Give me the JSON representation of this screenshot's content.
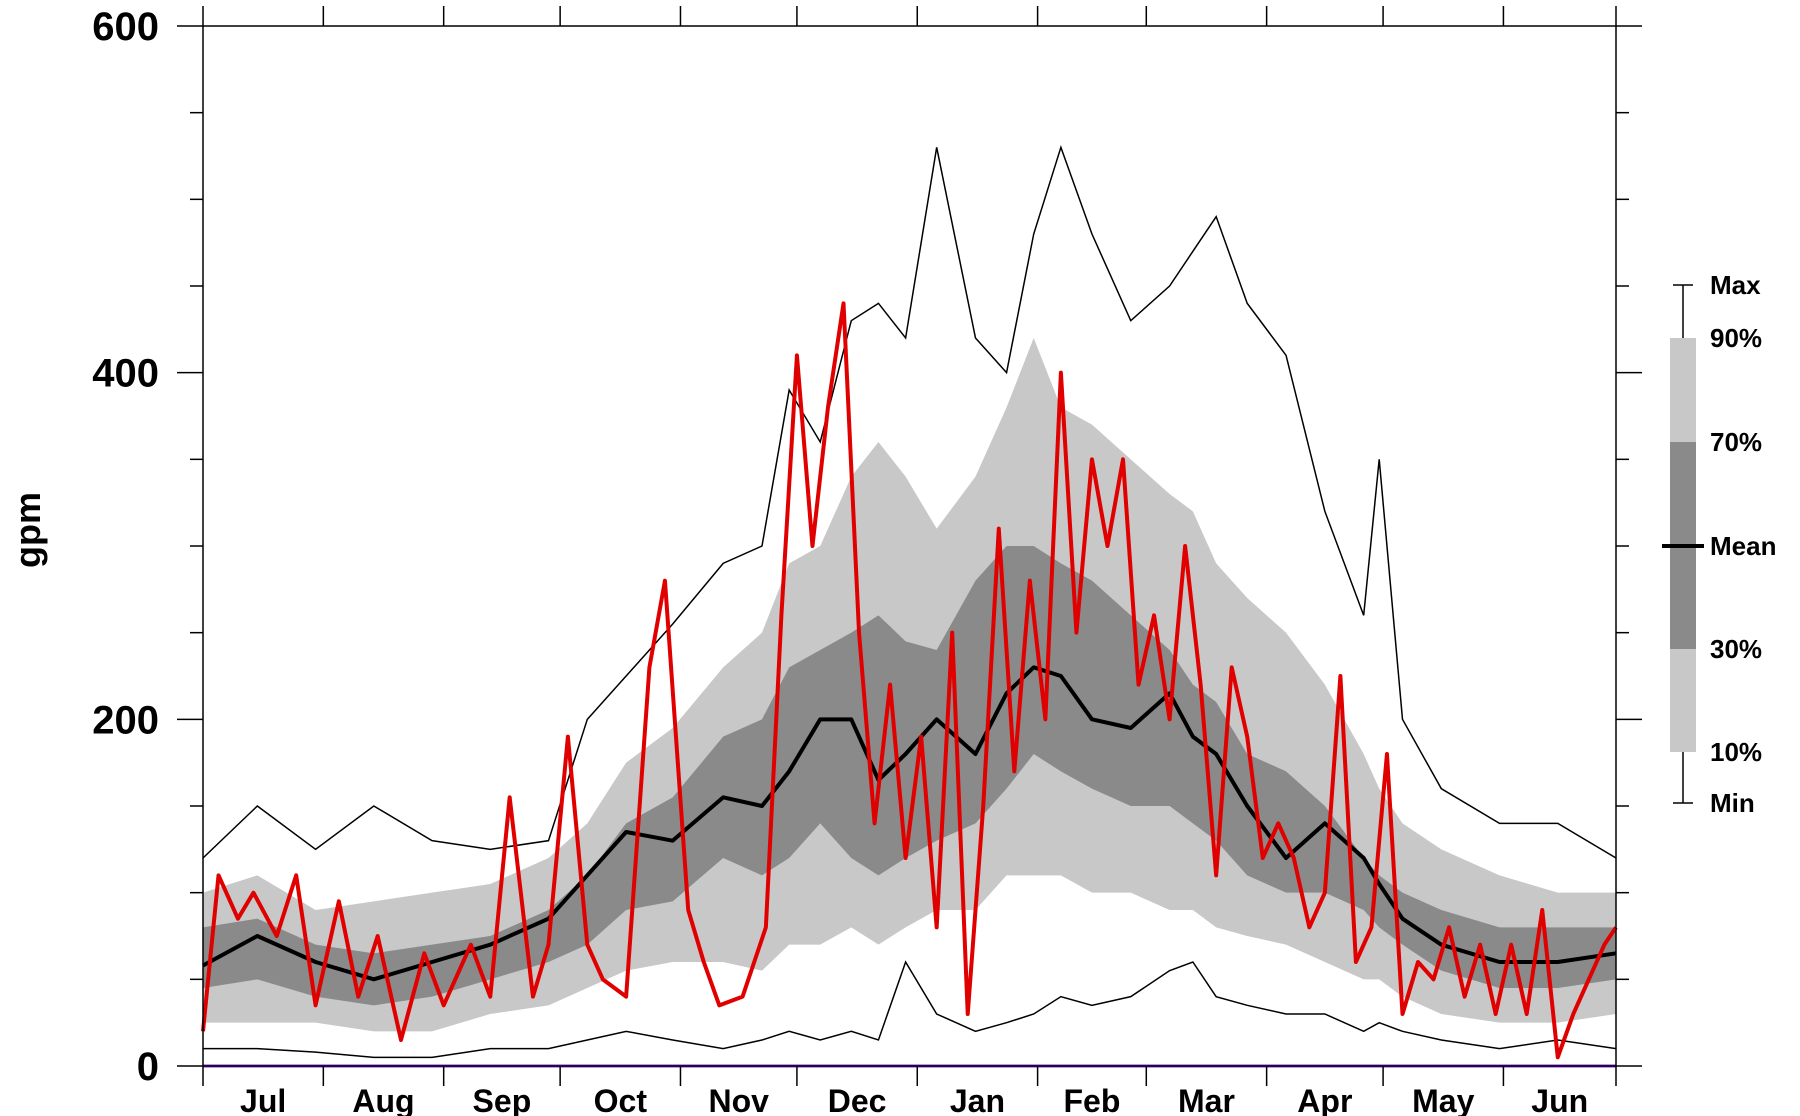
{
  "chart_data": {
    "type": "area",
    "title": "",
    "xlabel": "",
    "ylabel": "gpm",
    "ylim": [
      0,
      600
    ],
    "yticks": [
      "0",
      "200",
      "400",
      "600"
    ],
    "grid": false,
    "legend_position": "right",
    "months": [
      "Jul",
      "Aug",
      "Sep",
      "Oct",
      "Nov",
      "Dec",
      "Jan",
      "Feb",
      "Mar",
      "Apr",
      "May",
      "Jun"
    ],
    "days_per_month": [
      31,
      31,
      30,
      31,
      30,
      31,
      31,
      28,
      31,
      30,
      31,
      30
    ],
    "legend": [
      {
        "label": "Max",
        "kind": "thin-line",
        "color": "#000000"
      },
      {
        "label": "90%",
        "kind": "band-top",
        "color": "#c8c8c8"
      },
      {
        "label": "70%",
        "kind": "band-top",
        "color": "#8a8a8a"
      },
      {
        "label": "Mean",
        "kind": "thick-line",
        "color": "#000000"
      },
      {
        "label": "30%",
        "kind": "band-bottom",
        "color": "#8a8a8a"
      },
      {
        "label": "10%",
        "kind": "band-bottom",
        "color": "#c8c8c8"
      },
      {
        "label": "Min",
        "kind": "thin-line",
        "color": "#000000"
      }
    ],
    "colors": {
      "band_10_90": "#c8c8c8",
      "band_30_70": "#8a8a8a",
      "mean": "#000000",
      "current": "#e00000",
      "extremes": "#000000",
      "zero_line": "#8a2be2"
    },
    "series": [
      {
        "key": "max",
        "x": [
          1,
          15,
          30,
          45,
          60,
          75,
          90,
          100,
          110,
          122,
          135,
          145,
          152,
          160,
          168,
          175,
          182,
          190,
          200,
          208,
          215,
          222,
          230,
          240,
          250,
          256,
          262,
          270,
          280,
          290,
          300,
          304,
          310,
          320,
          335,
          350,
          365
        ],
        "y": [
          120,
          150,
          125,
          150,
          130,
          125,
          130,
          200,
          225,
          255,
          290,
          300,
          390,
          360,
          430,
          440,
          420,
          530,
          420,
          400,
          480,
          530,
          480,
          430,
          450,
          470,
          490,
          440,
          410,
          320,
          260,
          350,
          200,
          160,
          140,
          140,
          120
        ]
      },
      {
        "key": "p90",
        "x": [
          1,
          15,
          30,
          45,
          60,
          75,
          90,
          100,
          110,
          122,
          135,
          145,
          152,
          160,
          168,
          175,
          182,
          190,
          200,
          208,
          215,
          222,
          230,
          240,
          250,
          256,
          262,
          270,
          280,
          290,
          300,
          304,
          310,
          320,
          335,
          350,
          365
        ],
        "y": [
          100,
          110,
          90,
          95,
          100,
          105,
          120,
          140,
          175,
          195,
          230,
          250,
          290,
          300,
          340,
          360,
          340,
          310,
          340,
          380,
          420,
          380,
          370,
          350,
          330,
          320,
          290,
          270,
          250,
          220,
          180,
          160,
          140,
          125,
          110,
          100,
          100
        ]
      },
      {
        "key": "p70",
        "x": [
          1,
          15,
          30,
          45,
          60,
          75,
          90,
          100,
          110,
          122,
          135,
          145,
          152,
          160,
          168,
          175,
          182,
          190,
          200,
          208,
          215,
          222,
          230,
          240,
          250,
          256,
          262,
          270,
          280,
          290,
          300,
          304,
          310,
          320,
          335,
          350,
          365
        ],
        "y": [
          80,
          85,
          70,
          65,
          70,
          75,
          90,
          110,
          140,
          155,
          190,
          200,
          230,
          240,
          250,
          260,
          245,
          240,
          280,
          300,
          300,
          290,
          280,
          260,
          240,
          220,
          210,
          180,
          170,
          150,
          120,
          110,
          100,
          90,
          80,
          80,
          80
        ]
      },
      {
        "key": "mean",
        "x": [
          1,
          15,
          30,
          45,
          60,
          75,
          90,
          100,
          110,
          122,
          135,
          145,
          152,
          160,
          168,
          175,
          182,
          190,
          200,
          208,
          215,
          222,
          230,
          240,
          250,
          256,
          262,
          270,
          280,
          290,
          300,
          304,
          310,
          320,
          335,
          350,
          365
        ],
        "y": [
          58,
          75,
          60,
          50,
          60,
          70,
          85,
          110,
          135,
          130,
          155,
          150,
          170,
          200,
          200,
          165,
          180,
          200,
          180,
          215,
          230,
          225,
          200,
          195,
          215,
          190,
          180,
          150,
          120,
          140,
          120,
          105,
          85,
          70,
          60,
          60,
          65
        ]
      },
      {
        "key": "p30",
        "x": [
          1,
          15,
          30,
          45,
          60,
          75,
          90,
          100,
          110,
          122,
          135,
          145,
          152,
          160,
          168,
          175,
          182,
          190,
          200,
          208,
          215,
          222,
          230,
          240,
          250,
          256,
          262,
          270,
          280,
          290,
          300,
          304,
          310,
          320,
          335,
          350,
          365
        ],
        "y": [
          45,
          50,
          40,
          35,
          40,
          50,
          60,
          70,
          90,
          95,
          120,
          110,
          120,
          140,
          120,
          110,
          120,
          130,
          140,
          160,
          180,
          170,
          160,
          150,
          150,
          140,
          130,
          110,
          100,
          100,
          90,
          80,
          70,
          55,
          45,
          45,
          50
        ]
      },
      {
        "key": "p10",
        "x": [
          1,
          15,
          30,
          45,
          60,
          75,
          90,
          100,
          110,
          122,
          135,
          145,
          152,
          160,
          168,
          175,
          182,
          190,
          200,
          208,
          215,
          222,
          230,
          240,
          250,
          256,
          262,
          270,
          280,
          290,
          300,
          304,
          310,
          320,
          335,
          350,
          365
        ],
        "y": [
          25,
          25,
          25,
          20,
          20,
          30,
          35,
          45,
          55,
          60,
          60,
          55,
          70,
          70,
          80,
          70,
          80,
          90,
          90,
          110,
          110,
          110,
          100,
          100,
          90,
          90,
          80,
          75,
          70,
          60,
          50,
          50,
          40,
          30,
          25,
          25,
          30
        ]
      },
      {
        "key": "min",
        "x": [
          1,
          15,
          30,
          45,
          60,
          75,
          90,
          100,
          110,
          122,
          135,
          145,
          152,
          160,
          168,
          175,
          182,
          190,
          200,
          208,
          215,
          222,
          230,
          240,
          250,
          256,
          262,
          270,
          280,
          290,
          300,
          304,
          310,
          320,
          335,
          350,
          365
        ],
        "y": [
          10,
          10,
          8,
          5,
          5,
          10,
          10,
          15,
          20,
          15,
          10,
          15,
          20,
          15,
          20,
          15,
          60,
          30,
          20,
          25,
          30,
          40,
          35,
          40,
          55,
          60,
          40,
          35,
          30,
          30,
          20,
          25,
          20,
          15,
          10,
          15,
          10
        ]
      },
      {
        "key": "current",
        "x": [
          1,
          5,
          10,
          14,
          20,
          25,
          30,
          36,
          41,
          46,
          52,
          58,
          63,
          70,
          75,
          80,
          86,
          90,
          95,
          100,
          104,
          110,
          116,
          120,
          126,
          130,
          134,
          140,
          146,
          150,
          154,
          158,
          162,
          166,
          170,
          174,
          178,
          182,
          186,
          190,
          194,
          198,
          202,
          206,
          210,
          214,
          218,
          222,
          226,
          230,
          234,
          238,
          242,
          246,
          250,
          254,
          258,
          262,
          266,
          270,
          274,
          278,
          282,
          286,
          290,
          294,
          298,
          302,
          306,
          310,
          314,
          318,
          322,
          326,
          330,
          334,
          338,
          342,
          346,
          350,
          354,
          358,
          362,
          365
        ],
        "y": [
          20,
          110,
          85,
          100,
          75,
          110,
          35,
          95,
          40,
          75,
          15,
          65,
          35,
          70,
          40,
          155,
          40,
          70,
          190,
          70,
          50,
          40,
          230,
          280,
          90,
          60,
          35,
          40,
          80,
          260,
          410,
          300,
          380,
          440,
          250,
          140,
          220,
          120,
          190,
          80,
          250,
          30,
          150,
          310,
          170,
          280,
          200,
          400,
          250,
          350,
          300,
          350,
          220,
          260,
          200,
          300,
          220,
          110,
          230,
          190,
          120,
          140,
          120,
          80,
          100,
          225,
          60,
          80,
          180,
          30,
          60,
          50,
          80,
          40,
          70,
          30,
          70,
          30,
          90,
          5,
          30,
          50,
          70,
          80
        ]
      }
    ]
  }
}
